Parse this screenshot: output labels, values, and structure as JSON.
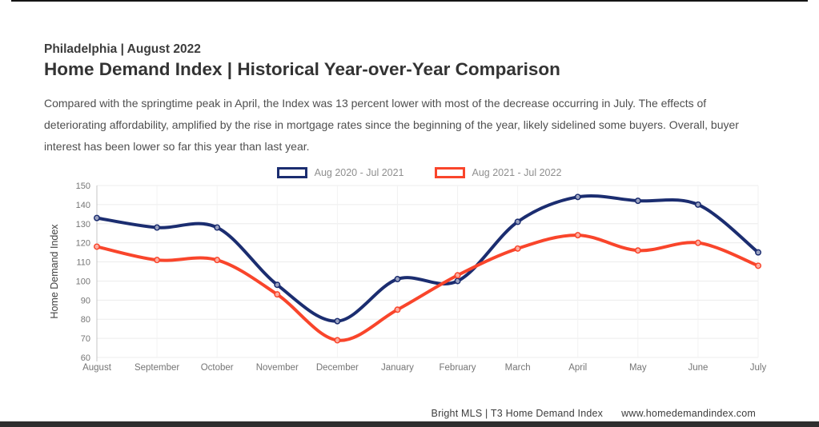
{
  "header": {
    "subtitle": "Philadelphia | August 2022",
    "title": "Home Demand Index | Historical Year-over-Year Comparison",
    "description": "Compared with the springtime peak in April, the Index was 13 percent lower with most of the decrease occurring in July. The effects of deteriorating affordability, amplified by the rise in mortgage rates since the beginning of the year, likely sidelined some buyers. Overall, buyer interest has been lower so far this year than last year."
  },
  "chart_data": {
    "type": "line",
    "title": "",
    "xlabel": "",
    "ylabel": "Home Demand Index",
    "categories": [
      "August",
      "September",
      "October",
      "November",
      "December",
      "January",
      "February",
      "March",
      "April",
      "May",
      "June",
      "July"
    ],
    "series": [
      {
        "name": "Aug 2020 - Jul 2021",
        "color": "#1b2d70",
        "values": [
          133,
          128,
          128,
          98,
          79,
          101,
          100,
          131,
          144,
          142,
          140,
          115
        ]
      },
      {
        "name": "Aug 2021 - Jul 2022",
        "color": "#f9452b",
        "values": [
          118,
          111,
          111,
          93,
          69,
          85,
          103,
          117,
          124,
          116,
          120,
          108
        ]
      }
    ],
    "ylim": [
      60,
      150
    ],
    "ytick_step": 10,
    "grid": true,
    "legend_position": "top",
    "curve": "smooth"
  },
  "footer": {
    "source": "Bright MLS | T3 Home Demand Index",
    "website": "www.homedemandindex.com"
  },
  "colors": {
    "series1": "#1b2d70",
    "series2": "#f9452b",
    "axis_text": "#757575",
    "axis_title": "#424242",
    "grid_horizontal": "#ececec",
    "grid_vertical": "#f2f2f2",
    "axis_line": "#c4c4c4",
    "frame_bar": "#2e2e2e"
  }
}
